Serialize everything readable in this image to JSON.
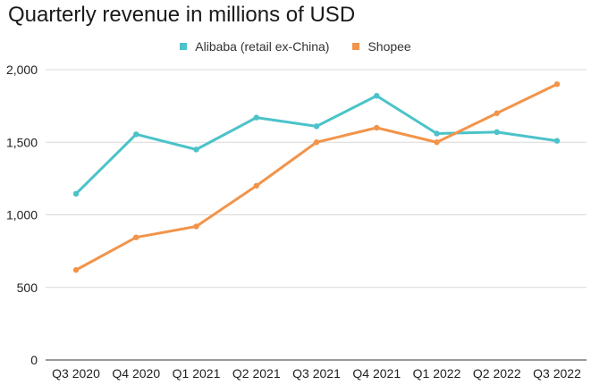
{
  "chart_data": {
    "type": "line",
    "title": "Quarterly revenue in millions of USD",
    "categories": [
      "Q3 2020",
      "Q4 2020",
      "Q1 2021",
      "Q2 2021",
      "Q3 2021",
      "Q4 2021",
      "Q1 2022",
      "Q2 2022",
      "Q3 2022"
    ],
    "series": [
      {
        "name": "Alibaba (retail ex-China)",
        "color": "#4bc3c9",
        "values": [
          1145,
          1555,
          1450,
          1670,
          1610,
          1820,
          1560,
          1570,
          1510
        ]
      },
      {
        "name": "Shopee",
        "color": "#f2944a",
        "values": [
          620,
          845,
          920,
          1200,
          1500,
          1600,
          1500,
          1700,
          1900
        ]
      }
    ],
    "ylim": [
      0,
      2000
    ],
    "yticks": [
      0,
      500,
      1000,
      1500,
      2000
    ],
    "ytick_labels": [
      "0",
      "500",
      "1,000",
      "1,500",
      "2,000"
    ],
    "xlabel": "",
    "ylabel": "",
    "legend": "top-center",
    "grid": true
  }
}
